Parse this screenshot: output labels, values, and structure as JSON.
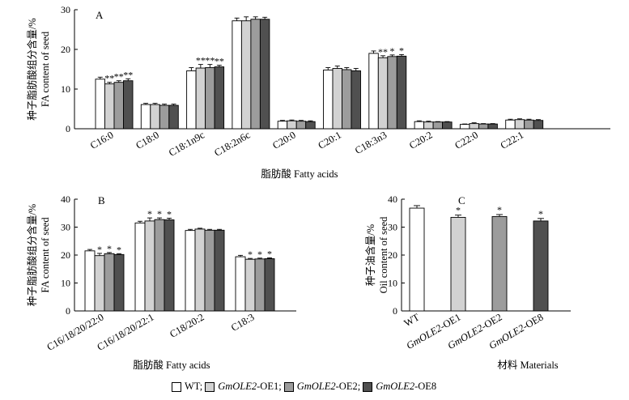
{
  "colors": {
    "WT": "#ffffff",
    "OE1": "#d2d2d2",
    "OE2": "#9c9c9c",
    "OE8": "#505050",
    "stroke": "#000000"
  },
  "legend": {
    "items": [
      {
        "key": "WT",
        "parts": [
          {
            "t": "WT;",
            "i": false
          }
        ]
      },
      {
        "key": "OE1",
        "parts": [
          {
            "t": "GmOLE2",
            "i": true
          },
          {
            "t": "-OE1;",
            "i": false
          }
        ]
      },
      {
        "key": "OE2",
        "parts": [
          {
            "t": "GmOLE2",
            "i": true
          },
          {
            "t": "-OE2;",
            "i": false
          }
        ]
      },
      {
        "key": "OE8",
        "parts": [
          {
            "t": "GmOLE2",
            "i": true
          },
          {
            "t": "-OE8",
            "i": false
          }
        ]
      }
    ]
  },
  "chart_data": [
    {
      "panel": "A",
      "type": "bar",
      "ylabel_cn": "种子脂肪酸组分含量/%",
      "ylabel_en": "FA content of seed",
      "xlabel": "脂肪酸 Fatty acids",
      "ylim": [
        0,
        30
      ],
      "yticks": [
        0,
        10,
        20,
        30
      ],
      "categories": [
        "C16:0",
        "C18:0",
        "C18:1n9c",
        "C18:2n6c",
        "C20:0",
        "C20:1",
        "C18:3n3",
        "C20:2",
        "C22:0",
        "C22:1"
      ],
      "series": [
        {
          "name": "WT",
          "values": [
            12.5,
            6.1,
            14.6,
            27.2,
            1.9,
            14.8,
            19.0,
            1.8,
            1.1,
            2.2
          ],
          "errors": [
            0.5,
            0.3,
            0.8,
            0.7,
            0.2,
            0.6,
            0.6,
            0.2,
            0.1,
            0.2
          ]
        },
        {
          "name": "GmOLE2-OE1",
          "values": [
            11.3,
            6.1,
            15.3,
            27.2,
            2.0,
            15.2,
            17.9,
            1.7,
            1.3,
            2.3
          ],
          "errors": [
            0.4,
            0.3,
            0.9,
            1.0,
            0.2,
            0.6,
            0.5,
            0.2,
            0.2,
            0.2
          ]
        },
        {
          "name": "GmOLE2-OE2",
          "values": [
            11.7,
            5.9,
            15.4,
            27.6,
            1.9,
            14.9,
            18.2,
            1.7,
            1.2,
            2.2
          ],
          "errors": [
            0.4,
            0.3,
            0.8,
            0.6,
            0.2,
            0.5,
            0.4,
            0.1,
            0.1,
            0.2
          ]
        },
        {
          "name": "GmOLE2-OE8",
          "values": [
            12.1,
            5.9,
            15.6,
            27.6,
            1.8,
            14.6,
            18.3,
            1.7,
            1.2,
            2.1
          ],
          "errors": [
            0.5,
            0.3,
            0.4,
            0.5,
            0.2,
            0.6,
            0.4,
            0.1,
            0.1,
            0.2
          ]
        }
      ],
      "significance": [
        [
          "",
          "**",
          "**",
          "**"
        ],
        [
          "",
          "",
          "",
          ""
        ],
        [
          "",
          "**",
          "**",
          "**"
        ],
        [
          "",
          "",
          "",
          ""
        ],
        [
          "",
          "",
          "",
          ""
        ],
        [
          "",
          "",
          "",
          ""
        ],
        [
          "",
          "**",
          "*",
          "*"
        ],
        [
          "",
          "",
          "",
          ""
        ],
        [
          "",
          "",
          "",
          ""
        ],
        [
          "",
          "",
          "",
          ""
        ]
      ]
    },
    {
      "panel": "B",
      "type": "bar",
      "ylabel_cn": "种子脂肪酸组分含量/%",
      "ylabel_en": "FA content of seed",
      "xlabel": "脂肪酸 Fatty acids",
      "ylim": [
        0,
        40
      ],
      "yticks": [
        0,
        10,
        20,
        30,
        40
      ],
      "categories": [
        "C16/18/20/22:0",
        "C16/18/20/22:1",
        "C18/20:2",
        "C18:3"
      ],
      "series": [
        {
          "name": "WT",
          "values": [
            21.5,
            31.5,
            28.8,
            19.4
          ],
          "errors": [
            0.5,
            0.6,
            0.4,
            0.5
          ]
        },
        {
          "name": "GmOLE2-OE1",
          "values": [
            19.8,
            32.2,
            29.3,
            18.5
          ],
          "errors": [
            0.8,
            1.1,
            0.3,
            0.3
          ]
        },
        {
          "name": "GmOLE2-OE2",
          "values": [
            20.5,
            32.7,
            28.9,
            18.6
          ],
          "errors": [
            0.4,
            0.6,
            0.3,
            0.3
          ]
        },
        {
          "name": "GmOLE2-OE8",
          "values": [
            20.2,
            32.6,
            28.9,
            18.7
          ],
          "errors": [
            0.3,
            0.6,
            0.3,
            0.3
          ]
        }
      ],
      "significance": [
        [
          "",
          "*",
          "*",
          "*"
        ],
        [
          "",
          "*",
          "*",
          "*"
        ],
        [
          "",
          "",
          "",
          ""
        ],
        [
          "",
          "*",
          "*",
          "*"
        ]
      ]
    },
    {
      "panel": "C",
      "type": "bar",
      "ylabel_cn": "种子油含量/%",
      "ylabel_en": "Oil content of seed",
      "xlabel": "材料 Materials",
      "ylim": [
        0,
        40
      ],
      "yticks": [
        0,
        10,
        20,
        30,
        40
      ],
      "categories": [
        {
          "parts": [
            {
              "t": "WT",
              "i": false
            }
          ]
        },
        {
          "parts": [
            {
              "t": "GmOLE2",
              "i": true
            },
            {
              "t": "-OE1",
              "i": false
            }
          ]
        },
        {
          "parts": [
            {
              "t": "GmOLE2",
              "i": true
            },
            {
              "t": "-OE2",
              "i": false
            }
          ]
        },
        {
          "parts": [
            {
              "t": "GmOLE2",
              "i": true
            },
            {
              "t": "-OE8",
              "i": false
            }
          ]
        }
      ],
      "values": [
        36.8,
        33.5,
        33.8,
        32.2
      ],
      "errors": [
        0.9,
        0.8,
        0.7,
        0.9
      ],
      "significance": [
        "",
        "*",
        "*",
        "*"
      ]
    }
  ]
}
